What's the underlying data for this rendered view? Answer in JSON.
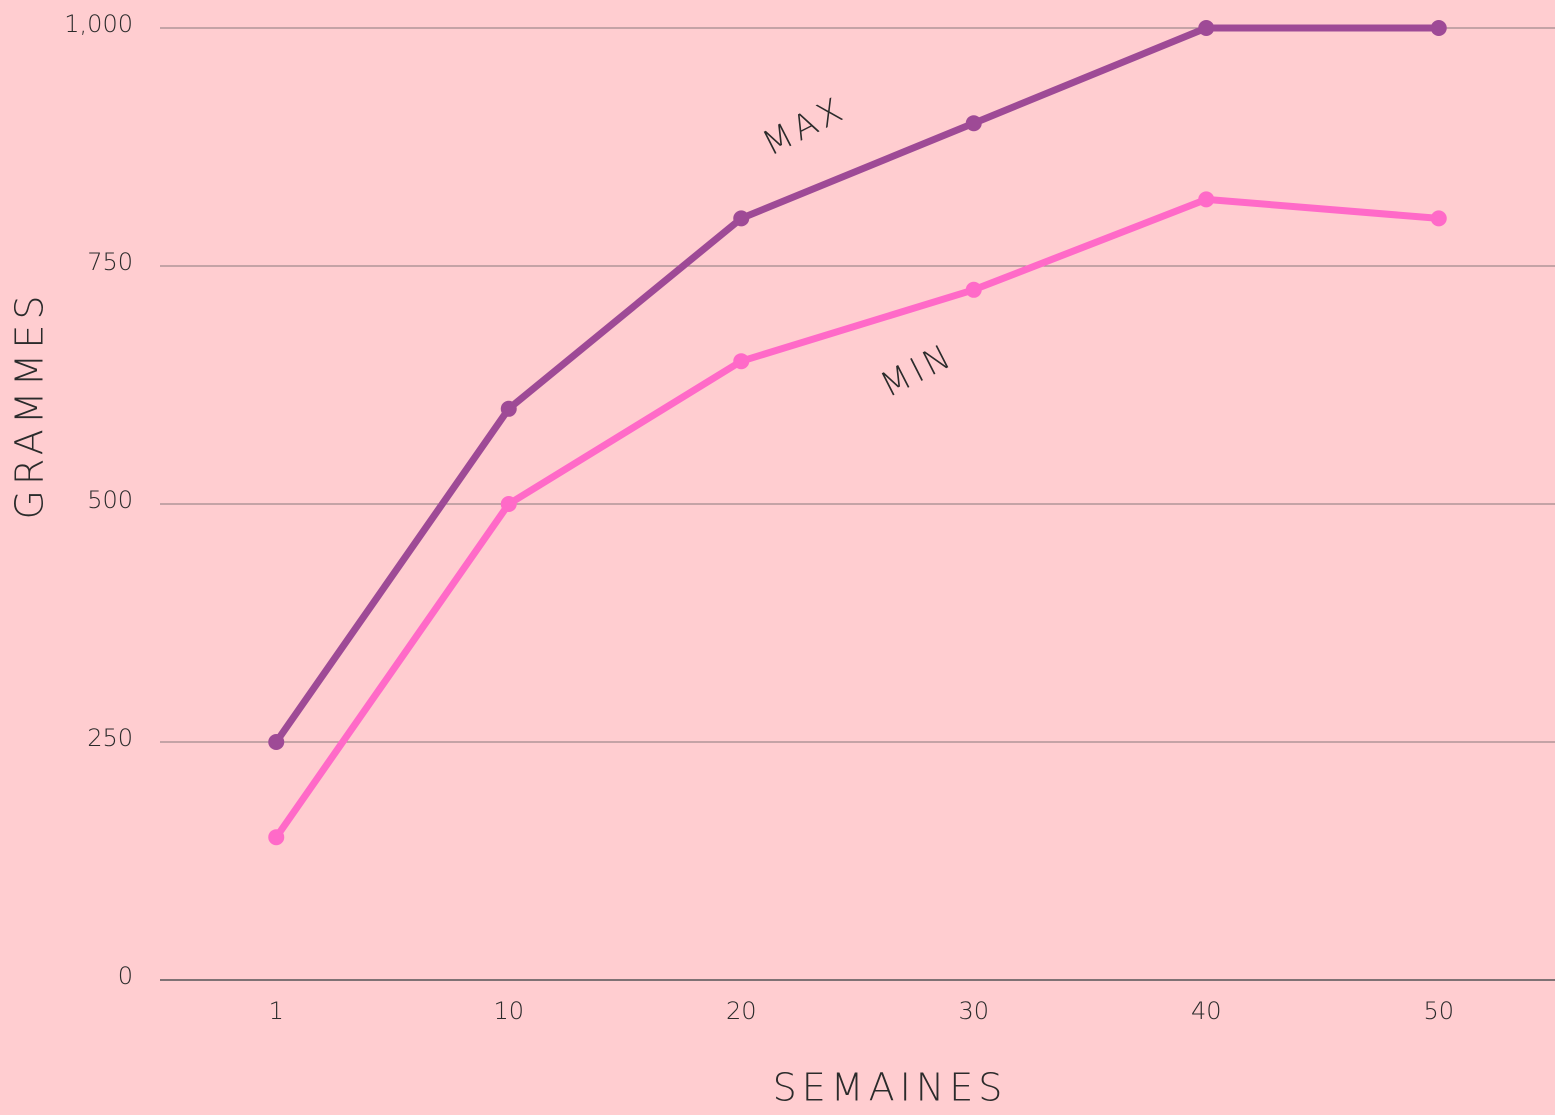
{
  "chart_data": {
    "type": "line",
    "x_label": "SEMAINES",
    "y_label": "GRAMMES",
    "categories": [
      "1",
      "10",
      "20",
      "30",
      "40",
      "50"
    ],
    "series": [
      {
        "name": "MAX",
        "color": "#9e4a96",
        "values": [
          250,
          600,
          800,
          900,
          1000,
          1000
        ]
      },
      {
        "name": "MIN",
        "color": "#ff6ac8",
        "values": [
          150,
          500,
          650,
          725,
          820,
          800
        ]
      }
    ],
    "ylim": [
      0,
      1000
    ],
    "yticks": [
      0,
      250,
      500,
      750,
      {
        "value": 1000,
        "label": "1,000"
      }
    ],
    "grid": true
  }
}
